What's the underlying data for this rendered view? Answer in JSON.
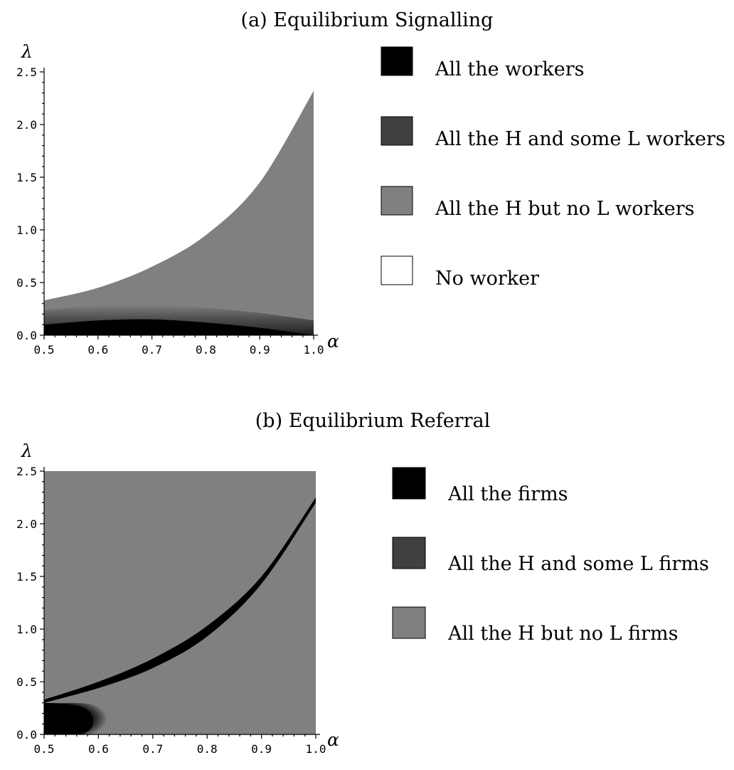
{
  "chart_data": [
    {
      "type": "area",
      "title": "(a) Equilibrium Signalling",
      "xlabel": "α",
      "ylabel": "λ",
      "xlim": [
        0.5,
        1.0
      ],
      "ylim": [
        0.0,
        2.5
      ],
      "x_ticks": [
        "0.5",
        "0.6",
        "0.7",
        "0.8",
        "0.9",
        "1.0"
      ],
      "y_ticks": [
        "0.0",
        "0.5",
        "1.0",
        "1.5",
        "2.0",
        "2.5"
      ],
      "legend_placement": "right",
      "legend": [
        {
          "label": "All the workers",
          "color": "#000000"
        },
        {
          "label": "All the H and some L workers",
          "color": "#404040"
        },
        {
          "label": "All the H but no L workers",
          "color": "#808080"
        },
        {
          "label": "No worker",
          "color": "#ffffff"
        }
      ],
      "regions": [
        {
          "label": "All the H but no L workers",
          "color": "#808080",
          "boundary_upper": {
            "x": [
              0.5,
              0.6,
              0.7,
              0.8,
              0.9,
              1.0
            ],
            "y": [
              0.33,
              0.45,
              0.65,
              0.95,
              1.45,
              2.32
            ]
          }
        },
        {
          "label": "All the workers",
          "color": "#000000",
          "boundary_upper": {
            "x": [
              0.5,
              0.6,
              0.7,
              0.8,
              0.9,
              1.0
            ],
            "y": [
              0.1,
              0.14,
              0.15,
              0.12,
              0.07,
              0.0
            ]
          }
        }
      ]
    },
    {
      "type": "area",
      "title": "(b) Equilibrium Referral",
      "xlabel": "α",
      "ylabel": "λ",
      "xlim": [
        0.5,
        1.0
      ],
      "ylim": [
        0.0,
        2.5
      ],
      "x_ticks": [
        "0.5",
        "0.6",
        "0.7",
        "0.8",
        "0.9",
        "1.0"
      ],
      "y_ticks": [
        "0.0",
        "0.5",
        "1.0",
        "1.5",
        "2.0",
        "2.5"
      ],
      "legend_placement": "right",
      "legend": [
        {
          "label": "All the firms",
          "color": "#000000"
        },
        {
          "label": "All the H and some L firms",
          "color": "#404040"
        },
        {
          "label": "All the H but no L firms",
          "color": "#808080"
        }
      ],
      "regions": [
        {
          "label": "All the H but no L firms",
          "color": "#808080",
          "x": [
            0.5,
            1.0
          ],
          "y": [
            0.0,
            2.5
          ]
        },
        {
          "label": "All the firms",
          "color": "#000000",
          "band_upper": {
            "x": [
              0.5,
              0.6,
              0.7,
              0.8,
              0.9,
              1.0
            ],
            "y": [
              0.33,
              0.5,
              0.72,
              1.03,
              1.5,
              2.25
            ]
          },
          "band_lower": {
            "x": [
              0.5,
              0.6,
              0.7,
              0.8,
              0.9,
              1.0
            ],
            "y": [
              0.3,
              0.44,
              0.63,
              0.93,
              1.43,
              2.2
            ]
          },
          "lower_left_blob": {
            "x": [
              0.5,
              0.55,
              0.6,
              0.62
            ],
            "y": [
              0.3,
              0.28,
              0.25,
              0.0
            ]
          }
        }
      ]
    }
  ]
}
